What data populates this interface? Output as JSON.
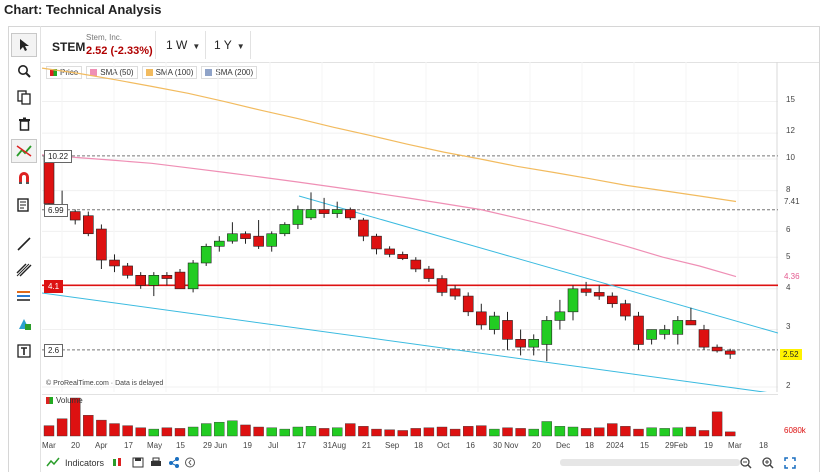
{
  "page": {
    "title": "Chart: Technical Analysis"
  },
  "header": {
    "symbol": "STEM",
    "company": "Stem, Inc.",
    "price": "2.52 (-2.33%)",
    "interval": "1 W",
    "range": "1 Y"
  },
  "legend": [
    {
      "label": "Price",
      "color": "#dd2222"
    },
    {
      "label": "SMA (50)",
      "color": "#ef8fb5"
    },
    {
      "label": "SMA (100)",
      "color": "#f2bb5f"
    },
    {
      "label": "SMA (200)",
      "color": "#8fa3c8"
    }
  ],
  "y_axis_ticks": [
    "15",
    "12",
    "10",
    "8",
    "6",
    "5",
    "4",
    "3",
    "2"
  ],
  "price_labels": {
    "sma100": "7.41",
    "sma50": "4.36",
    "last": "2.52",
    "volume": "6080k"
  },
  "annotations": [
    "10.22",
    "6.99",
    "4.1",
    "2.6"
  ],
  "watermark": "© ProRealTime.com · Data is delayed",
  "volume_label": "Volume",
  "x_axis_labels": [
    "Mar",
    "20",
    "Apr",
    "17",
    "May",
    "15",
    "29 Jun",
    "19",
    "Jul",
    "17",
    "31Aug",
    "21",
    "Sep",
    "18",
    "Oct",
    "16",
    "30 Nov",
    "20",
    "Dec",
    "18",
    "2024",
    "15",
    "29Feb",
    "19",
    "Mar",
    "18"
  ],
  "bottom_bar": {
    "indicators": "Indicators"
  },
  "colors": {
    "up": "#22cc22",
    "down": "#dd1111",
    "channel": "#3bbbe0",
    "hline": "#dd1111",
    "sma50": "#ef8fb5",
    "sma100": "#f2bb5f"
  },
  "chart_data": {
    "type": "candlestick",
    "y_scale": "log",
    "ylim": [
      1.9,
      20
    ],
    "candles": [
      {
        "o": 10.2,
        "h": 10.3,
        "l": 7.0,
        "c": 7.3
      },
      {
        "o": 7.2,
        "h": 8.0,
        "l": 6.7,
        "c": 6.9
      },
      {
        "o": 6.9,
        "h": 7.0,
        "l": 6.3,
        "c": 6.5
      },
      {
        "o": 6.7,
        "h": 6.9,
        "l": 5.8,
        "c": 5.9
      },
      {
        "o": 6.1,
        "h": 6.3,
        "l": 4.6,
        "c": 4.9
      },
      {
        "o": 4.9,
        "h": 5.1,
        "l": 4.5,
        "c": 4.7
      },
      {
        "o": 4.7,
        "h": 4.8,
        "l": 4.3,
        "c": 4.4
      },
      {
        "o": 4.4,
        "h": 4.5,
        "l": 4.0,
        "c": 4.1
      },
      {
        "o": 4.1,
        "h": 4.5,
        "l": 3.8,
        "c": 4.4
      },
      {
        "o": 4.4,
        "h": 4.5,
        "l": 4.1,
        "c": 4.3
      },
      {
        "o": 4.5,
        "h": 4.6,
        "l": 4.0,
        "c": 4.0
      },
      {
        "o": 4.0,
        "h": 4.9,
        "l": 3.9,
        "c": 4.8
      },
      {
        "o": 4.8,
        "h": 5.5,
        "l": 4.7,
        "c": 5.4
      },
      {
        "o": 5.4,
        "h": 5.8,
        "l": 5.2,
        "c": 5.6
      },
      {
        "o": 5.6,
        "h": 6.4,
        "l": 5.5,
        "c": 5.9
      },
      {
        "o": 5.9,
        "h": 6.0,
        "l": 5.5,
        "c": 5.7
      },
      {
        "o": 5.8,
        "h": 6.5,
        "l": 5.3,
        "c": 5.4
      },
      {
        "o": 5.4,
        "h": 6.0,
        "l": 5.2,
        "c": 5.9
      },
      {
        "o": 5.9,
        "h": 6.4,
        "l": 5.8,
        "c": 6.3
      },
      {
        "o": 6.3,
        "h": 7.2,
        "l": 6.1,
        "c": 7.0
      },
      {
        "o": 6.6,
        "h": 7.9,
        "l": 6.5,
        "c": 7.0
      },
      {
        "o": 7.0,
        "h": 7.6,
        "l": 6.6,
        "c": 6.8
      },
      {
        "o": 6.8,
        "h": 7.4,
        "l": 6.6,
        "c": 7.0
      },
      {
        "o": 7.0,
        "h": 7.1,
        "l": 6.5,
        "c": 6.6
      },
      {
        "o": 6.5,
        "h": 6.6,
        "l": 5.6,
        "c": 5.8
      },
      {
        "o": 5.8,
        "h": 5.9,
        "l": 5.1,
        "c": 5.3
      },
      {
        "o": 5.3,
        "h": 5.4,
        "l": 5.0,
        "c": 5.1
      },
      {
        "o": 5.1,
        "h": 5.2,
        "l": 4.9,
        "c": 4.95
      },
      {
        "o": 4.9,
        "h": 5.0,
        "l": 4.5,
        "c": 4.6
      },
      {
        "o": 4.6,
        "h": 4.7,
        "l": 4.2,
        "c": 4.3
      },
      {
        "o": 4.3,
        "h": 4.4,
        "l": 3.8,
        "c": 3.9
      },
      {
        "o": 4.0,
        "h": 4.1,
        "l": 3.7,
        "c": 3.8
      },
      {
        "o": 3.8,
        "h": 3.9,
        "l": 3.3,
        "c": 3.4
      },
      {
        "o": 3.4,
        "h": 3.6,
        "l": 3.0,
        "c": 3.1
      },
      {
        "o": 3.0,
        "h": 3.4,
        "l": 2.9,
        "c": 3.3
      },
      {
        "o": 3.2,
        "h": 3.4,
        "l": 2.6,
        "c": 2.8
      },
      {
        "o": 2.8,
        "h": 3.0,
        "l": 2.5,
        "c": 2.65
      },
      {
        "o": 2.65,
        "h": 2.9,
        "l": 2.5,
        "c": 2.8
      },
      {
        "o": 2.7,
        "h": 3.3,
        "l": 2.4,
        "c": 3.2
      },
      {
        "o": 3.2,
        "h": 3.7,
        "l": 3.0,
        "c": 3.4
      },
      {
        "o": 3.4,
        "h": 4.1,
        "l": 3.2,
        "c": 4.0
      },
      {
        "o": 4.0,
        "h": 4.2,
        "l": 3.8,
        "c": 3.9
      },
      {
        "o": 3.9,
        "h": 4.1,
        "l": 3.7,
        "c": 3.8
      },
      {
        "o": 3.8,
        "h": 3.9,
        "l": 3.5,
        "c": 3.6
      },
      {
        "o": 3.6,
        "h": 3.7,
        "l": 3.2,
        "c": 3.3
      },
      {
        "o": 3.3,
        "h": 3.4,
        "l": 2.6,
        "c": 2.7
      },
      {
        "o": 2.8,
        "h": 3.0,
        "l": 2.7,
        "c": 3.0
      },
      {
        "o": 2.9,
        "h": 3.1,
        "l": 2.8,
        "c": 3.0
      },
      {
        "o": 2.9,
        "h": 3.3,
        "l": 2.7,
        "c": 3.2
      },
      {
        "o": 3.2,
        "h": 3.5,
        "l": 3.1,
        "c": 3.1
      },
      {
        "o": 3.0,
        "h": 3.1,
        "l": 2.6,
        "c": 2.65
      },
      {
        "o": 2.65,
        "h": 2.7,
        "l": 2.55,
        "c": 2.58
      },
      {
        "o": 2.58,
        "h": 2.62,
        "l": 2.44,
        "c": 2.52
      }
    ],
    "volume": [
      1.5,
      2.5,
      5.5,
      3.0,
      2.3,
      1.8,
      1.5,
      1.2,
      1.0,
      1.2,
      1.1,
      1.3,
      1.8,
      2.0,
      2.2,
      1.6,
      1.3,
      1.2,
      1.0,
      1.3,
      1.4,
      1.1,
      1.2,
      1.8,
      1.4,
      1.0,
      0.9,
      0.8,
      1.1,
      1.2,
      1.3,
      1.0,
      1.4,
      1.5,
      1.0,
      1.2,
      1.1,
      1.0,
      2.1,
      1.4,
      1.3,
      1.1,
      1.2,
      1.8,
      1.4,
      1.0,
      1.2,
      1.1,
      1.2,
      1.3,
      0.8,
      3.5,
      0.6
    ],
    "sma50": [
      10.3,
      10.1,
      9.9,
      9.7,
      9.4,
      9.1,
      8.8,
      8.5,
      8.2,
      7.9,
      7.6,
      7.3,
      7.0,
      6.6,
      6.2,
      5.8,
      5.4,
      5.0,
      4.7,
      4.36
    ],
    "sma100": [
      19.0,
      18.3,
      17.5,
      16.7,
      15.9,
      15.0,
      14.1,
      13.3,
      12.5,
      11.8,
      11.1,
      10.5,
      10.0,
      9.5,
      9.1,
      8.7,
      8.3,
      8.0,
      7.7,
      7.41
    ],
    "horizontal_lines": [
      10.22,
      6.99,
      4.1,
      2.6
    ]
  }
}
